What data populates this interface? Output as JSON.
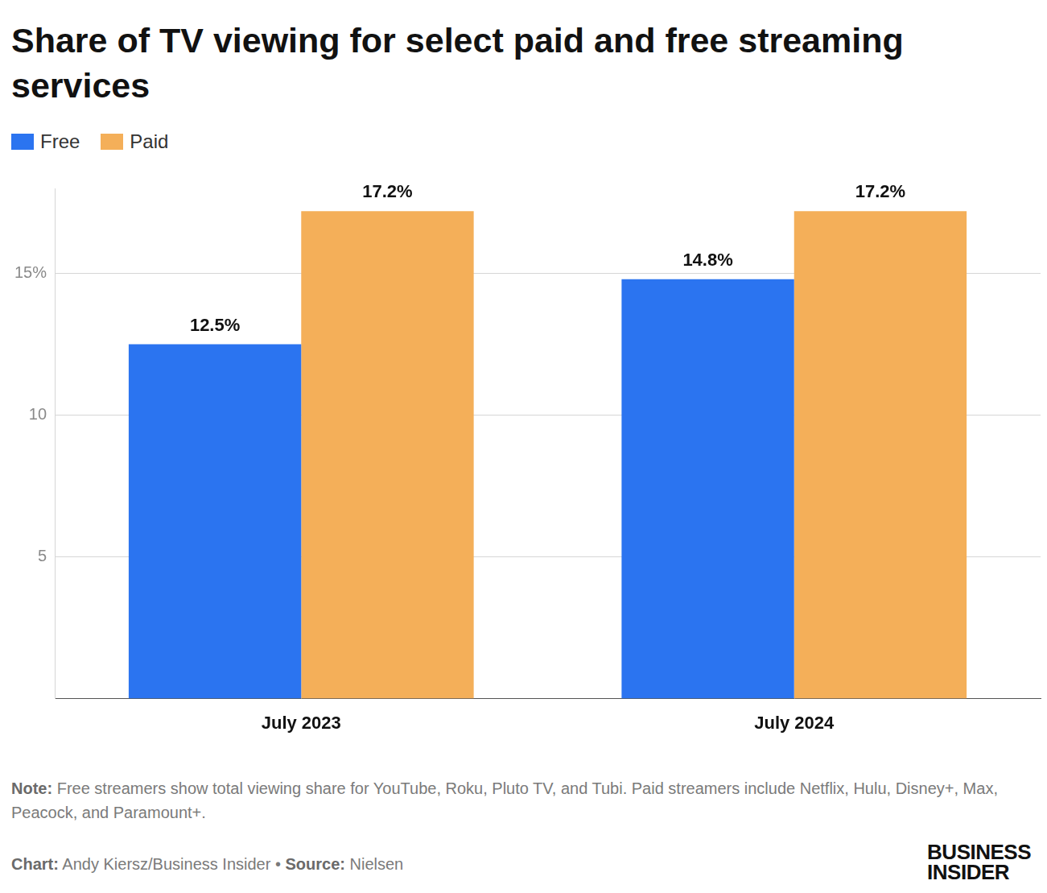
{
  "chart_data": {
    "type": "bar",
    "title": "Share of TV viewing for select paid and free streaming services",
    "categories": [
      "July 2023",
      "July 2024"
    ],
    "series": [
      {
        "name": "Free",
        "color": "#2b74f0",
        "values": [
          12.5,
          14.8
        ],
        "value_labels": [
          "12.5%",
          "14.8%"
        ]
      },
      {
        "name": "Paid",
        "color": "#f4af59",
        "values": [
          17.2,
          17.2
        ],
        "value_labels": [
          "17.2%",
          "17.2%"
        ]
      }
    ],
    "ylim": [
      0,
      18
    ],
    "yticks": [
      5,
      10,
      {
        "value": 15,
        "label": "15%"
      }
    ],
    "grid": true,
    "legend": "top-left",
    "data_labels": true
  },
  "footer": {
    "note": {
      "label": "Note:",
      "text": "Free streamers show total viewing share for YouTube, Roku, Pluto TV, and Tubi. Paid streamers include Netflix, Hulu, Disney+, Max, Peacock, and Paramount+."
    },
    "credit": [
      {
        "label": "Chart:",
        "text": "Andy Kiersz/Business Insider •"
      },
      {
        "label": "Source:",
        "text": "Nielsen"
      }
    ],
    "logo": [
      "BUSINESS",
      "INSIDER"
    ]
  }
}
